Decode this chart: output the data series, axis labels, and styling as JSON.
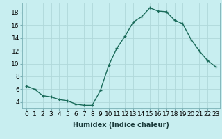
{
  "x": [
    0,
    1,
    2,
    3,
    4,
    5,
    6,
    7,
    8,
    9,
    10,
    11,
    12,
    13,
    14,
    15,
    16,
    17,
    18,
    19,
    20,
    21,
    22,
    23
  ],
  "y": [
    6.5,
    6.0,
    5.0,
    4.8,
    4.4,
    4.2,
    3.7,
    3.5,
    3.5,
    5.8,
    9.7,
    12.4,
    14.3,
    16.5,
    17.3,
    18.7,
    18.2,
    18.1,
    16.8,
    16.2,
    13.8,
    12.0,
    10.5,
    9.5
  ],
  "xlabel": "Humidex (Indice chaleur)",
  "ylim": [
    3.0,
    19.5
  ],
  "xlim": [
    -0.5,
    23.5
  ],
  "yticks": [
    4,
    6,
    8,
    10,
    12,
    14,
    16,
    18
  ],
  "xtick_labels": [
    "0",
    "1",
    "2",
    "3",
    "4",
    "5",
    "6",
    "7",
    "8",
    "9",
    "10",
    "11",
    "12",
    "13",
    "14",
    "15",
    "16",
    "17",
    "18",
    "19",
    "20",
    "21",
    "22",
    "23"
  ],
  "line_color": "#1a6b5a",
  "marker": "+",
  "bg_color": "#c8eef0",
  "grid_color": "#b0d8da",
  "xlabel_fontsize": 7,
  "tick_fontsize": 6.5
}
